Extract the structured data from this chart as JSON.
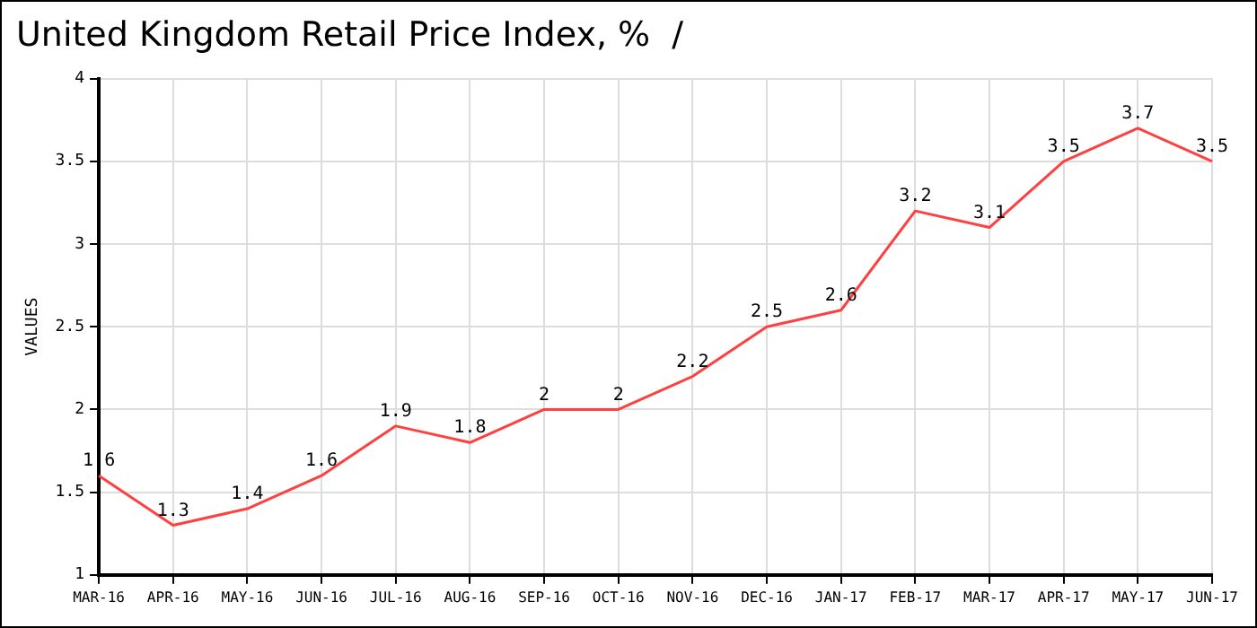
{
  "chart_data": {
    "type": "line",
    "title": "United Kingdom Retail Price Index, %  /",
    "ylabel": "VALUES",
    "categories": [
      "MAR-16",
      "APR-16",
      "MAY-16",
      "JUN-16",
      "JUL-16",
      "AUG-16",
      "SEP-16",
      "OCT-16",
      "NOV-16",
      "DEC-16",
      "JAN-17",
      "FEB-17",
      "MAR-17",
      "APR-17",
      "MAY-17",
      "JUN-17"
    ],
    "series": [
      {
        "color": "#ff4040",
        "values": [
          1.6,
          1.3,
          1.4,
          1.6,
          1.9,
          1.8,
          2,
          2,
          2.2,
          2.5,
          2.6,
          3.2,
          3.1,
          3.5,
          3.7,
          3.5
        ]
      }
    ],
    "ylim": [
      1,
      4
    ],
    "yticks": [
      1,
      1.5,
      2,
      2.5,
      3,
      3.5,
      4
    ],
    "grid": true,
    "data_labels": true,
    "legend": false,
    "marker": "none",
    "line_style": "solid"
  }
}
